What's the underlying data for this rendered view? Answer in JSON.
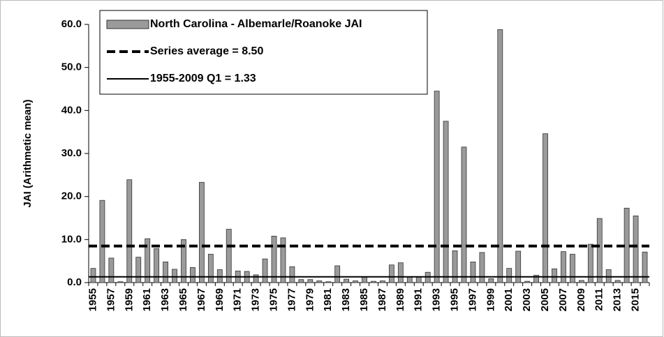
{
  "chart_data": {
    "type": "bar",
    "y_label": "JAI (Arithmetic mean)",
    "categories": [
      "1955",
      null,
      "1957",
      null,
      "1959",
      null,
      "1961",
      null,
      "1963",
      null,
      "1965",
      null,
      "1967",
      null,
      "1969",
      null,
      "1971",
      null,
      "1973",
      null,
      "1975",
      null,
      "1977",
      null,
      "1979",
      null,
      "1981",
      null,
      "1983",
      null,
      "1985",
      null,
      "1987",
      null,
      "1989",
      null,
      "1991",
      null,
      "1993",
      null,
      "1995",
      null,
      "1997",
      null,
      "1999",
      null,
      "2001",
      null,
      "2003",
      null,
      "2005",
      null,
      "2007",
      null,
      "2009",
      null,
      "2011",
      null,
      "2013",
      null,
      "2015",
      null
    ],
    "series": [
      {
        "name": "North Carolina - Albemarle/Roanoke JAI",
        "color": "#9a9a9a",
        "values": [
          3.3,
          19.1,
          5.7,
          0.2,
          23.9,
          5.9,
          10.2,
          7.9,
          4.8,
          3.1,
          10.0,
          3.5,
          23.3,
          6.6,
          3.0,
          12.4,
          2.7,
          2.6,
          1.8,
          5.5,
          10.8,
          10.4,
          3.7,
          0.7,
          0.7,
          0.4,
          0.2,
          3.9,
          0.8,
          0.4,
          1.3,
          0.3,
          0.4,
          4.1,
          4.6,
          1.3,
          1.3,
          2.4,
          44.5,
          37.5,
          7.4,
          31.5,
          4.8,
          7.0,
          0.9,
          58.8,
          3.3,
          7.3,
          0.3,
          1.7,
          34.6,
          3.2,
          7.2,
          6.6,
          0.5,
          8.9,
          14.9,
          3.0,
          0.5,
          17.3,
          15.5,
          7.1
        ]
      }
    ],
    "reference_lines": [
      {
        "name": "Series average = 8.50",
        "value": 8.5,
        "style": "dashed",
        "color": "#000000"
      },
      {
        "name": "1955-2009 Q1 = 1.33",
        "value": 1.33,
        "style": "solid",
        "color": "#000000"
      }
    ],
    "ylim": [
      0,
      60
    ],
    "yticks": [
      {
        "value": 0,
        "label": "0.0"
      },
      {
        "value": 10,
        "label": "10.0"
      },
      {
        "value": 20,
        "label": "20.0"
      },
      {
        "value": 30,
        "label": "30.0"
      },
      {
        "value": 40,
        "label": "40.0"
      },
      {
        "value": 50,
        "label": "50.0"
      },
      {
        "value": 60,
        "label": "60.0"
      }
    ],
    "legend": "upper left"
  }
}
